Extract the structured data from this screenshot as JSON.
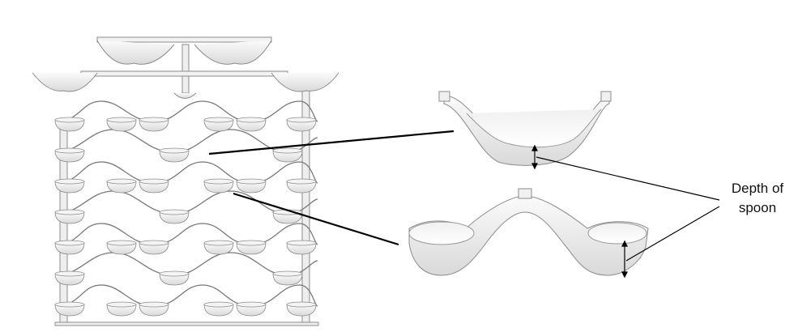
{
  "annotation": {
    "line1": "Depth of",
    "line2": "spoon"
  },
  "colors": {
    "line": "#000000",
    "fill": "#ffffff",
    "shade": "#e6e6e6",
    "edge": "#8c8c8c"
  }
}
